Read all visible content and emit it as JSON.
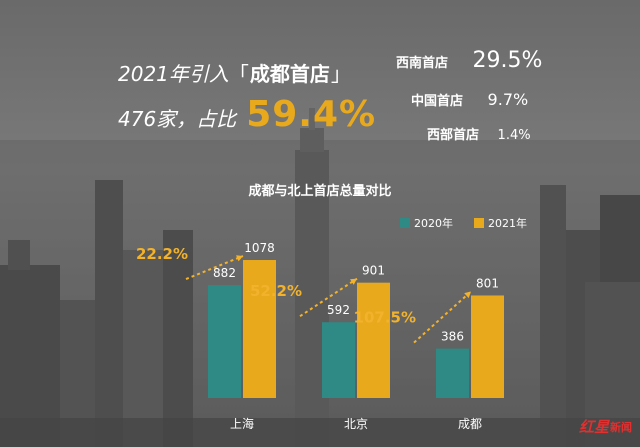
{
  "headline": {
    "line1_prefix": "2021年引入",
    "bracket_open": "「",
    "keyword": "成都首店",
    "bracket_close": "」",
    "line2_text": "476家，占比",
    "line2_percent": "59.4%"
  },
  "stats": [
    {
      "label": "西南首店",
      "value": "29.5%"
    },
    {
      "label": "中国首店",
      "value": "9.7%"
    },
    {
      "label": "西部首店",
      "value": "1.4%"
    }
  ],
  "logo": {
    "mark": "红星",
    "sub": "新闻"
  },
  "colors": {
    "teal": "#2f8a86",
    "gold": "#e9a91d",
    "growth": "#f2b22c"
  },
  "chart_data": {
    "type": "bar",
    "title": "成都与北上首店总量对比",
    "categories": [
      "上海",
      "北京",
      "成都"
    ],
    "series": [
      {
        "name": "2020年",
        "values": [
          882,
          592,
          386
        ]
      },
      {
        "name": "2021年",
        "values": [
          1078,
          901,
          801
        ]
      }
    ],
    "growth_labels": [
      "22.2%",
      "52.2%",
      "107.5%"
    ],
    "ylim": [
      0,
      1200
    ],
    "legend": "top-right",
    "grid": false
  }
}
